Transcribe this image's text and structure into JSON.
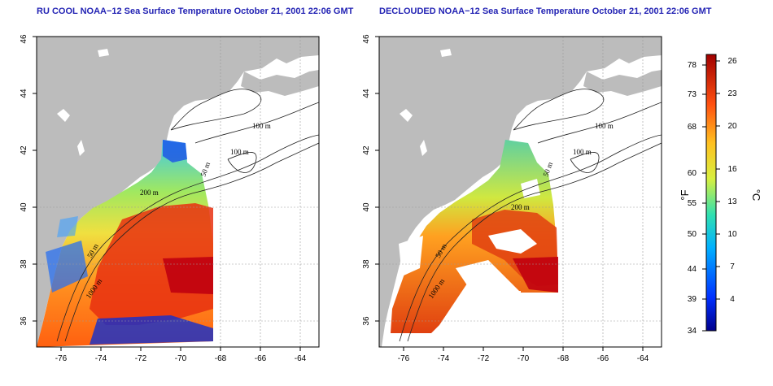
{
  "titles": {
    "left": "RU COOL NOAA−12 Sea Surface Temperature October 21, 2001 22:06 GMT",
    "right": "DECLOUDED NOAA−12 Sea Surface Temperature October 21, 2001 22:06 GMT"
  },
  "axes": {
    "lon_ticks": [
      "-76",
      "-74",
      "-72",
      "-70",
      "-68",
      "-66",
      "-64"
    ],
    "lat_ticks": [
      "36",
      "38",
      "40",
      "42",
      "44",
      "46"
    ]
  },
  "contours": {
    "m100a": "100 m",
    "m100b": "100 m",
    "m50": "50 m",
    "m200": "200 m",
    "m1000": "1000 m",
    "m50s": "50 m"
  },
  "colorbar": {
    "f_ticks": [
      "78",
      "73",
      "68",
      "60",
      "55",
      "50",
      "44",
      "39",
      "34"
    ],
    "c_ticks": [
      "26",
      "23",
      "20",
      "16",
      "13",
      "10",
      "7",
      "4"
    ],
    "f_unit": "°F",
    "c_unit": "°C"
  },
  "colors": {
    "land": "#bcbcbc",
    "cold": "#1020c0",
    "warm": "#cc0000",
    "title": "#2323b4"
  }
}
